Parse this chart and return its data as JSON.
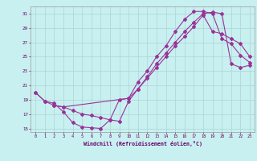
{
  "xlabel": "Windchill (Refroidissement éolien,°C)",
  "bg_color": "#c8f0f0",
  "grid_color": "#aed4d4",
  "line_color": "#993399",
  "line1_x": [
    0,
    1,
    2,
    3,
    4,
    5,
    6,
    7,
    8,
    9,
    10,
    11,
    12,
    13,
    14,
    15,
    16,
    17,
    18,
    19,
    20,
    21,
    22,
    23
  ],
  "line1_y": [
    20.0,
    18.8,
    18.5,
    17.3,
    15.8,
    15.2,
    15.1,
    15.0,
    16.2,
    19.0,
    19.2,
    21.5,
    23.0,
    25.0,
    26.5,
    28.5,
    30.2,
    31.3,
    31.3,
    31.0,
    27.5,
    26.8,
    25.2,
    24.2
  ],
  "line2_x": [
    2,
    3,
    4,
    5,
    6,
    7,
    8,
    9,
    10,
    11,
    12,
    13,
    14,
    15,
    16,
    17,
    18,
    19,
    20,
    21,
    22,
    23
  ],
  "line2_y": [
    18.2,
    18.0,
    17.5,
    17.0,
    16.8,
    16.5,
    16.2,
    16.0,
    18.8,
    20.5,
    22.0,
    23.5,
    25.0,
    26.5,
    27.8,
    29.2,
    30.8,
    28.5,
    28.2,
    27.5,
    26.8,
    25.0
  ],
  "line3_x": [
    0,
    1,
    2,
    3,
    10,
    11,
    12,
    13,
    14,
    15,
    16,
    17,
    18,
    19,
    20,
    21,
    22,
    23
  ],
  "line3_y": [
    20.0,
    18.8,
    18.2,
    18.0,
    19.2,
    20.5,
    22.2,
    24.0,
    25.5,
    27.0,
    28.5,
    29.8,
    31.0,
    31.2,
    31.0,
    24.0,
    23.5,
    23.8
  ],
  "ylim": [
    14.5,
    32.0
  ],
  "xlim": [
    -0.5,
    23.5
  ],
  "yticks": [
    15,
    17,
    19,
    21,
    23,
    25,
    27,
    29,
    31
  ],
  "xticks": [
    0,
    1,
    2,
    3,
    4,
    5,
    6,
    7,
    8,
    9,
    10,
    11,
    12,
    13,
    14,
    15,
    16,
    17,
    18,
    19,
    20,
    21,
    22,
    23
  ]
}
